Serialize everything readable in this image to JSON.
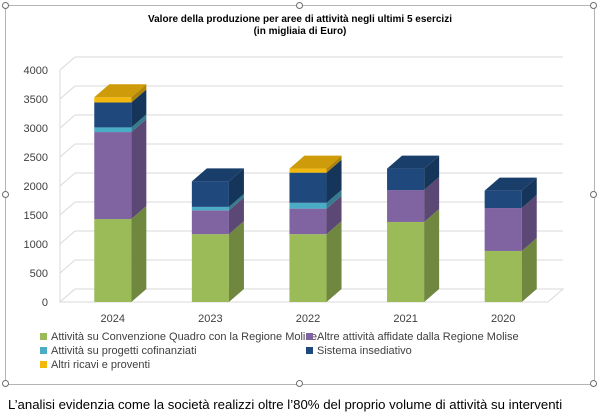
{
  "chart_data": {
    "type": "bar",
    "stacked": true,
    "three_d": true,
    "title": "Valore della produzione  per aree di attività negli ultimi 5 esercizi",
    "subtitle": "(in migliaia  di Euro)",
    "categories": [
      "2024",
      "2023",
      "2022",
      "2021",
      "2020"
    ],
    "ylim": [
      0,
      4000
    ],
    "yticks": [
      "0",
      "500",
      "1000",
      "1500",
      "2000",
      "2500",
      "3000",
      "3500",
      "4000"
    ],
    "grid": true,
    "legend_position": "bottom",
    "series": [
      {
        "name": "Attività su Convenzione Quadro  con la Regione Molise",
        "color": "#9bbb59",
        "values": [
          1430,
          1170,
          1170,
          1380,
          880
        ]
      },
      {
        "name": "Altre attività  affidate dalla Regione Molise",
        "color": "#8064a2",
        "values": [
          1500,
          410,
          440,
          550,
          740
        ]
      },
      {
        "name": "Attività  su progetti  cofinanziati",
        "color": "#4bacc6",
        "values": [
          80,
          60,
          100,
          0,
          0
        ]
      },
      {
        "name": "Sistema insediativo",
        "color": "#1f497d",
        "values": [
          430,
          440,
          520,
          370,
          300
        ]
      },
      {
        "name": "Altri ricavi e proventi",
        "color": "#f2b80c",
        "values": [
          90,
          0,
          70,
          0,
          0
        ]
      }
    ]
  },
  "caption": "L’analisi evidenzia come la società realizzi oltre l’80% del proprio volume di attività su interventi"
}
